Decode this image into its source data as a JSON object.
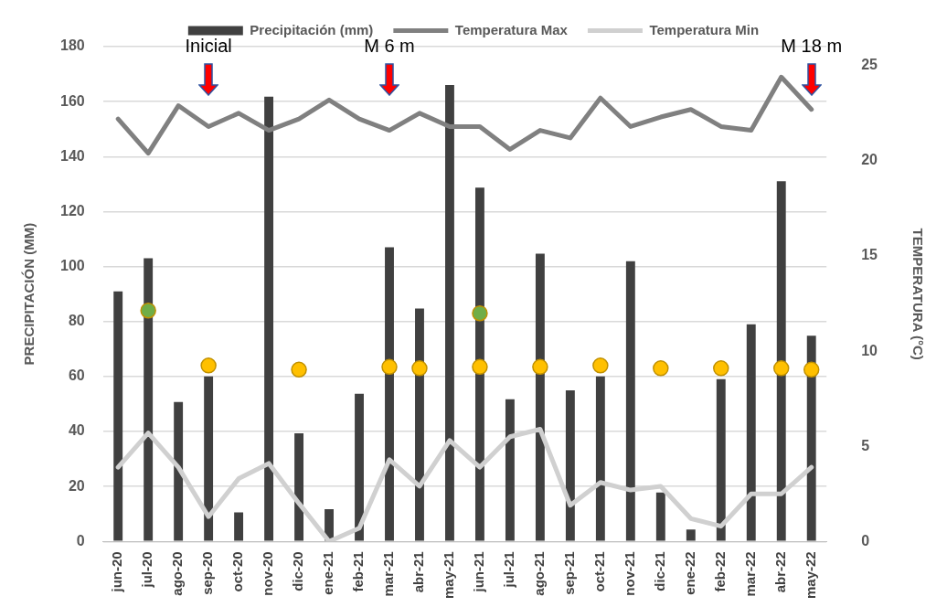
{
  "chart_data": {
    "type": "bar",
    "categories": [
      "jun-20",
      "jul-20",
      "ago-20",
      "sep-20",
      "oct-20",
      "nov-20",
      "dic-20",
      "ene-21",
      "feb-21",
      "mar-21",
      "abr-21",
      "may-21",
      "jun-21",
      "jul-21",
      "ago-21",
      "sep-21",
      "oct-21",
      "nov-21",
      "dic-21",
      "ene-22",
      "feb-22",
      "mar-22",
      "abr-22",
      "may-22"
    ],
    "ylabel": "PRECIPITACIÓN (MM)",
    "y2label": "TEMPERATURA (°C)",
    "ylim": [
      0,
      180
    ],
    "yticks": [
      0,
      20,
      40,
      60,
      80,
      100,
      120,
      140,
      160,
      180
    ],
    "y2lim": [
      0,
      26
    ],
    "y2ticks": [
      0,
      5,
      10,
      15,
      20,
      25
    ],
    "grid": "y",
    "legend": "top",
    "series": [
      {
        "name": "Precipitación (mm)",
        "color": "#404040",
        "values": [
          91,
          103,
          50.7,
          60,
          10.6,
          161.8,
          39.3,
          11.7,
          53.7,
          107,
          84.7,
          166,
          128.7,
          51.7,
          104.7,
          55,
          60,
          101.9,
          17.8,
          4.3,
          59,
          79,
          131,
          74.8
        ]
      },
      {
        "name": "Temperatura Max",
        "type": "line",
        "axis": "y2",
        "color": "#808080",
        "marker": "none",
        "values": [
          22.2,
          20.4,
          22.9,
          21.8,
          22.5,
          21.6,
          22.2,
          23.2,
          22.2,
          21.6,
          22.5,
          21.8,
          21.8,
          20.6,
          21.6,
          21.2,
          23.3,
          21.8,
          22.3,
          22.7,
          21.8,
          21.6,
          24.4,
          22.7
        ]
      },
      {
        "name": "Temperatura Min",
        "type": "line",
        "axis": "y2",
        "color": "#d0d0d0",
        "marker": "none",
        "values": [
          3.9,
          5.7,
          3.9,
          1.3,
          3.3,
          4.1,
          2.0,
          0,
          0.7,
          4.3,
          2.9,
          5.3,
          3.9,
          5.5,
          5.9,
          1.9,
          3.1,
          2.7,
          2.9,
          1.2,
          0.8,
          2.5,
          2.5,
          3.9
        ]
      },
      {
        "type": "scatter",
        "color": "#70ad47",
        "marker": "circle",
        "x": [
          "jul-20",
          "jun-21"
        ],
        "values": [
          84,
          83
        ]
      },
      {
        "type": "scatter",
        "color": "#ffc000",
        "marker": "circle",
        "x": [
          "sep-20",
          "dic-20",
          "mar-21",
          "abr-21",
          "jun-21",
          "ago-21",
          "oct-21",
          "dic-21",
          "feb-22",
          "abr-22",
          "may-22"
        ],
        "values": [
          64,
          62.5,
          63.5,
          63,
          63.5,
          63.5,
          64,
          63,
          63,
          63,
          62.5
        ]
      }
    ],
    "annotations": [
      "Inicial",
      "M 6 m",
      "M 18 m"
    ]
  }
}
